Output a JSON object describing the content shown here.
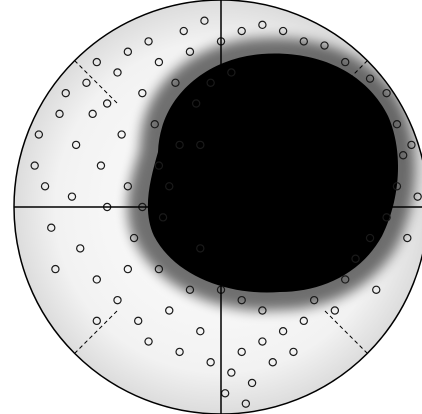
{
  "chart_data": {
    "type": "scatter",
    "color": "#1a1a1a",
    "xlim": [
      -1,
      1
    ],
    "ylim": [
      -1,
      1
    ],
    "x": [
      -0.88,
      -0.85,
      -0.82,
      -0.9,
      -0.78,
      -0.75,
      -0.7,
      -0.72,
      -0.68,
      -0.8,
      -0.65,
      -0.6,
      -0.62,
      -0.58,
      -0.55,
      -0.6,
      -0.5,
      -0.55,
      -0.5,
      -0.45,
      -0.48,
      -0.45,
      -0.42,
      -0.4,
      -0.35,
      -0.38,
      -0.35,
      -0.3,
      -0.32,
      -0.3,
      -0.28,
      -0.3,
      -0.25,
      -0.2,
      -0.22,
      -0.18,
      -0.15,
      -0.12,
      -0.2,
      -0.15,
      -0.1,
      -0.05,
      -0.08,
      0.0,
      0.05,
      0.1,
      0.15,
      0.2,
      0.25,
      0.3,
      0.35,
      0.4,
      0.45,
      0.55,
      0.6,
      0.65,
      0.72,
      0.8,
      0.85,
      0.88,
      0.85,
      0.8,
      0.72,
      0.6,
      0.5,
      0.4,
      0.3,
      0.2,
      0.1,
      0.48,
      0.9,
      0.75,
      0.12,
      0.02,
      -0.6,
      -0.45,
      -0.38,
      -0.25,
      -0.1,
      0.0,
      0.1,
      0.2,
      -0.05,
      0.05,
      -0.1,
      0.92,
      0.95
    ],
    "values": [
      0.35,
      0.1,
      -0.1,
      0.2,
      0.45,
      0.55,
      0.3,
      0.05,
      -0.2,
      -0.3,
      0.6,
      0.7,
      0.45,
      0.2,
      0.0,
      -0.35,
      -0.45,
      0.5,
      0.65,
      0.75,
      0.35,
      0.1,
      -0.15,
      -0.55,
      -0.65,
      0.55,
      0.8,
      0.7,
      0.4,
      0.2,
      -0.05,
      -0.3,
      -0.5,
      -0.7,
      0.6,
      0.85,
      0.75,
      0.5,
      0.3,
      -0.4,
      -0.6,
      -0.75,
      0.9,
      0.8,
      -0.8,
      -0.7,
      -0.85,
      -0.65,
      -0.75,
      -0.6,
      -0.7,
      -0.55,
      -0.45,
      -0.5,
      -0.35,
      -0.25,
      -0.15,
      -0.05,
      0.1,
      0.25,
      0.4,
      0.55,
      0.62,
      0.7,
      0.78,
      0.8,
      0.85,
      0.88,
      0.85,
      0.9,
      -0.15,
      -0.4,
      -0.95,
      -0.9,
      -0.55,
      -0.3,
      0.0,
      0.1,
      -0.2,
      -0.4,
      -0.45,
      -0.5,
      0.6,
      0.65,
      0.3,
      0.3,
      0.05
    ]
  }
}
